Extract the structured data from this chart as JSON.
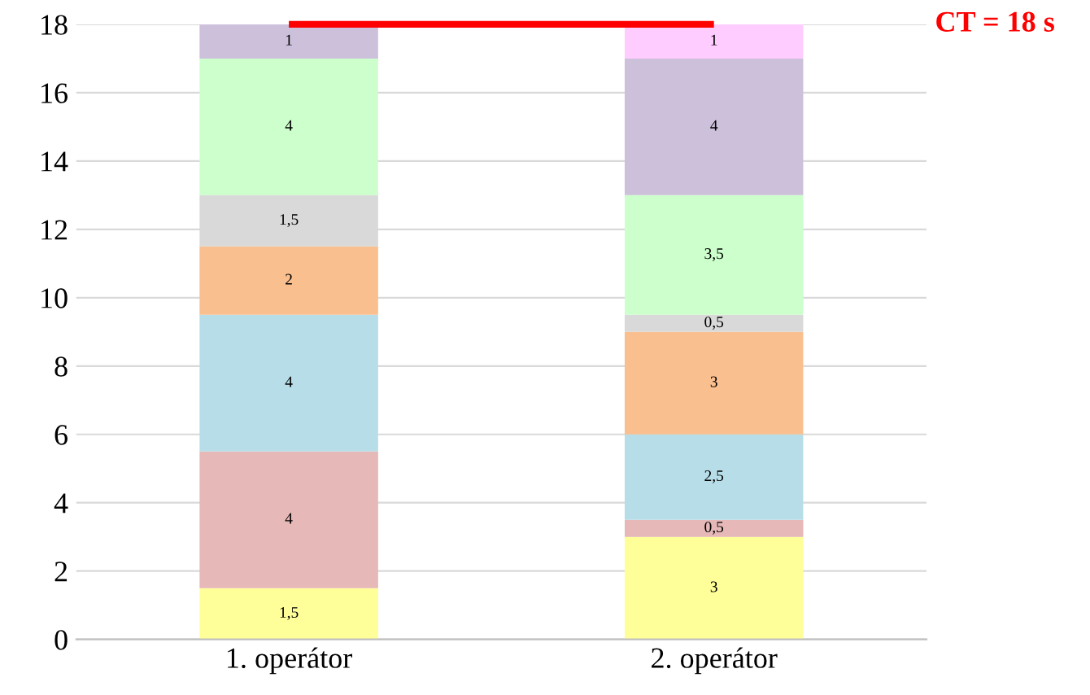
{
  "chart_data": {
    "type": "bar",
    "stacked": true,
    "categories": [
      "1. operátor",
      "2. operátor"
    ],
    "series": [
      {
        "color": "#ffff99",
        "values": [
          1.5,
          3
        ],
        "value_labels": [
          "1,5",
          "3"
        ]
      },
      {
        "color": "#e6b8b7",
        "values": [
          4,
          0.5
        ],
        "value_labels": [
          "4",
          "0,5"
        ]
      },
      {
        "color": "#b7dee8",
        "values": [
          4,
          2.5
        ],
        "value_labels": [
          "4",
          "2,5"
        ]
      },
      {
        "color": "#fabf8f",
        "values": [
          2,
          3
        ],
        "value_labels": [
          "2",
          "3"
        ]
      },
      {
        "color": "#d9d9d9",
        "values": [
          1.5,
          0.5
        ],
        "value_labels": [
          "1,5",
          "0,5"
        ]
      },
      {
        "color": "#ccffcc",
        "values": [
          4,
          3.5
        ],
        "value_labels": [
          "4",
          "3,5"
        ]
      },
      {
        "color": "#ccc0da",
        "values": [
          1,
          4
        ],
        "value_labels": [
          "1",
          "4"
        ]
      },
      {
        "color": "#ffccff",
        "values": [
          null,
          1
        ],
        "value_labels": [
          null,
          "1"
        ]
      }
    ],
    "ylim": [
      0,
      18
    ],
    "yticks": [
      0,
      2,
      4,
      6,
      8,
      10,
      12,
      14,
      16,
      18
    ],
    "grid": "y",
    "legend": false,
    "ref_lines": [
      {
        "axis": "y",
        "value": 18,
        "label": "CT = 18 s",
        "color": "#ff0000"
      }
    ]
  }
}
